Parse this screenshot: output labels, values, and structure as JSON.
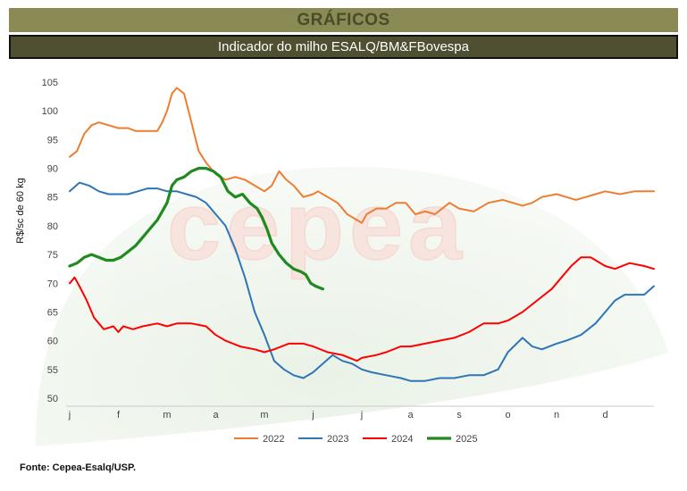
{
  "header": {
    "title": "GRÁFICOS",
    "subtitle": "Indicador do milho ESALQ/BM&FBovespa"
  },
  "watermark": {
    "text": "cepea"
  },
  "source": "Fonte: Cepea-Esalq/USP.",
  "chart_data": {
    "type": "line",
    "ylabel": "R$/sc de 60 kg",
    "xlabel": "",
    "ylim": [
      50,
      105
    ],
    "yticks": [
      50,
      55,
      60,
      65,
      70,
      75,
      80,
      85,
      90,
      95,
      100,
      105
    ],
    "xlim": [
      0,
      12
    ],
    "month_ticks": [
      {
        "label": "j",
        "x": 0
      },
      {
        "label": "f",
        "x": 1
      },
      {
        "label": "m",
        "x": 2
      },
      {
        "label": "a",
        "x": 3
      },
      {
        "label": "m",
        "x": 4
      },
      {
        "label": "j",
        "x": 5
      },
      {
        "label": "j",
        "x": 6
      },
      {
        "label": "a",
        "x": 7
      },
      {
        "label": "s",
        "x": 8
      },
      {
        "label": "o",
        "x": 9
      },
      {
        "label": "n",
        "x": 10
      },
      {
        "label": "d",
        "x": 11
      }
    ],
    "grid": false,
    "legend": "bottom",
    "series": [
      {
        "name": "2022",
        "color": "#ed7d31",
        "width": 2,
        "points": [
          [
            0,
            92
          ],
          [
            0.15,
            93
          ],
          [
            0.3,
            96
          ],
          [
            0.45,
            97.5
          ],
          [
            0.6,
            98
          ],
          [
            0.8,
            97.5
          ],
          [
            1.0,
            97
          ],
          [
            1.2,
            97
          ],
          [
            1.35,
            96.5
          ],
          [
            1.6,
            96.5
          ],
          [
            1.8,
            96.5
          ],
          [
            1.9,
            98
          ],
          [
            2.0,
            100
          ],
          [
            2.1,
            103
          ],
          [
            2.2,
            104
          ],
          [
            2.35,
            103
          ],
          [
            2.5,
            98
          ],
          [
            2.65,
            93
          ],
          [
            2.8,
            91
          ],
          [
            3.0,
            89
          ],
          [
            3.2,
            88
          ],
          [
            3.4,
            88.5
          ],
          [
            3.6,
            88
          ],
          [
            3.8,
            87
          ],
          [
            4.0,
            86
          ],
          [
            4.15,
            87
          ],
          [
            4.3,
            89.5
          ],
          [
            4.45,
            88
          ],
          [
            4.6,
            87
          ],
          [
            4.8,
            85
          ],
          [
            5.0,
            85.5
          ],
          [
            5.1,
            86
          ],
          [
            5.3,
            85
          ],
          [
            5.5,
            84
          ],
          [
            5.7,
            82
          ],
          [
            5.9,
            81
          ],
          [
            6.0,
            80.5
          ],
          [
            6.1,
            82
          ],
          [
            6.3,
            83
          ],
          [
            6.5,
            83
          ],
          [
            6.7,
            84
          ],
          [
            6.9,
            84
          ],
          [
            7.1,
            82
          ],
          [
            7.3,
            82.5
          ],
          [
            7.5,
            82
          ],
          [
            7.8,
            84
          ],
          [
            8.0,
            83
          ],
          [
            8.3,
            82.5
          ],
          [
            8.6,
            84
          ],
          [
            8.9,
            84.5
          ],
          [
            9.1,
            84
          ],
          [
            9.3,
            83.5
          ],
          [
            9.5,
            84
          ],
          [
            9.7,
            85
          ],
          [
            10.0,
            85.5
          ],
          [
            10.2,
            85
          ],
          [
            10.4,
            84.5
          ],
          [
            10.6,
            85
          ],
          [
            10.8,
            85.5
          ],
          [
            11.0,
            86
          ],
          [
            11.3,
            85.5
          ],
          [
            11.6,
            86
          ],
          [
            11.8,
            86
          ],
          [
            12.0,
            86
          ]
        ]
      },
      {
        "name": "2023",
        "color": "#2e75b6",
        "width": 2,
        "points": [
          [
            0,
            86
          ],
          [
            0.2,
            87.5
          ],
          [
            0.4,
            87
          ],
          [
            0.6,
            86
          ],
          [
            0.8,
            85.5
          ],
          [
            1.0,
            85.5
          ],
          [
            1.2,
            85.5
          ],
          [
            1.4,
            86
          ],
          [
            1.6,
            86.5
          ],
          [
            1.8,
            86.5
          ],
          [
            2.0,
            86
          ],
          [
            2.2,
            86
          ],
          [
            2.4,
            85.5
          ],
          [
            2.6,
            85
          ],
          [
            2.8,
            84
          ],
          [
            3.0,
            82
          ],
          [
            3.2,
            80
          ],
          [
            3.4,
            76
          ],
          [
            3.6,
            71
          ],
          [
            3.8,
            65
          ],
          [
            4.0,
            61
          ],
          [
            4.2,
            56.5
          ],
          [
            4.4,
            55
          ],
          [
            4.6,
            54
          ],
          [
            4.8,
            53.5
          ],
          [
            5.0,
            54.5
          ],
          [
            5.2,
            56
          ],
          [
            5.4,
            57.5
          ],
          [
            5.6,
            56.5
          ],
          [
            5.8,
            56
          ],
          [
            6.0,
            55
          ],
          [
            6.2,
            54.5
          ],
          [
            6.5,
            54
          ],
          [
            6.8,
            53.5
          ],
          [
            7.0,
            53
          ],
          [
            7.3,
            53
          ],
          [
            7.6,
            53.5
          ],
          [
            7.9,
            53.5
          ],
          [
            8.2,
            54
          ],
          [
            8.5,
            54
          ],
          [
            8.8,
            55
          ],
          [
            9.0,
            58
          ],
          [
            9.3,
            60.5
          ],
          [
            9.5,
            59
          ],
          [
            9.7,
            58.5
          ],
          [
            10.0,
            59.5
          ],
          [
            10.2,
            60
          ],
          [
            10.5,
            61
          ],
          [
            10.8,
            63
          ],
          [
            11.0,
            65
          ],
          [
            11.2,
            67
          ],
          [
            11.4,
            68
          ],
          [
            11.6,
            68
          ],
          [
            11.8,
            68
          ],
          [
            12.0,
            69.5
          ]
        ]
      },
      {
        "name": "2024",
        "color": "#ff0000",
        "width": 2,
        "points": [
          [
            0,
            70
          ],
          [
            0.1,
            71
          ],
          [
            0.2,
            69.5
          ],
          [
            0.35,
            67
          ],
          [
            0.5,
            64
          ],
          [
            0.7,
            62
          ],
          [
            0.9,
            62.5
          ],
          [
            1.0,
            61.5
          ],
          [
            1.1,
            62.5
          ],
          [
            1.3,
            62
          ],
          [
            1.5,
            62.5
          ],
          [
            1.8,
            63
          ],
          [
            2.0,
            62.5
          ],
          [
            2.2,
            63
          ],
          [
            2.5,
            63
          ],
          [
            2.8,
            62.5
          ],
          [
            3.0,
            61
          ],
          [
            3.2,
            60
          ],
          [
            3.5,
            59
          ],
          [
            3.8,
            58.5
          ],
          [
            4.0,
            58
          ],
          [
            4.2,
            58.5
          ],
          [
            4.5,
            59.5
          ],
          [
            4.8,
            59.5
          ],
          [
            5.0,
            59
          ],
          [
            5.3,
            58
          ],
          [
            5.6,
            57.5
          ],
          [
            5.9,
            56.5
          ],
          [
            6.0,
            57
          ],
          [
            6.3,
            57.5
          ],
          [
            6.5,
            58
          ],
          [
            6.8,
            59
          ],
          [
            7.0,
            59
          ],
          [
            7.3,
            59.5
          ],
          [
            7.6,
            60
          ],
          [
            7.9,
            60.5
          ],
          [
            8.2,
            61.5
          ],
          [
            8.5,
            63
          ],
          [
            8.8,
            63
          ],
          [
            9.0,
            63.5
          ],
          [
            9.3,
            65
          ],
          [
            9.6,
            67
          ],
          [
            9.9,
            69
          ],
          [
            10.1,
            71
          ],
          [
            10.3,
            73
          ],
          [
            10.5,
            74.5
          ],
          [
            10.7,
            74.5
          ],
          [
            10.8,
            74
          ],
          [
            11.0,
            73
          ],
          [
            11.2,
            72.5
          ],
          [
            11.5,
            73.5
          ],
          [
            11.8,
            73
          ],
          [
            12.0,
            72.5
          ]
        ]
      },
      {
        "name": "2025",
        "color": "#1f8a1f",
        "width": 3.2,
        "points": [
          [
            0,
            73
          ],
          [
            0.15,
            73.5
          ],
          [
            0.3,
            74.5
          ],
          [
            0.45,
            75
          ],
          [
            0.6,
            74.5
          ],
          [
            0.75,
            74
          ],
          [
            0.9,
            74
          ],
          [
            1.05,
            74.5
          ],
          [
            1.2,
            75.5
          ],
          [
            1.35,
            76.5
          ],
          [
            1.5,
            78
          ],
          [
            1.65,
            79.5
          ],
          [
            1.8,
            81
          ],
          [
            1.9,
            82.5
          ],
          [
            2.0,
            84
          ],
          [
            2.1,
            87
          ],
          [
            2.2,
            88
          ],
          [
            2.35,
            88.5
          ],
          [
            2.5,
            89.5
          ],
          [
            2.65,
            90
          ],
          [
            2.8,
            90
          ],
          [
            2.95,
            89.5
          ],
          [
            3.1,
            88.5
          ],
          [
            3.25,
            86
          ],
          [
            3.4,
            85
          ],
          [
            3.55,
            85.5
          ],
          [
            3.7,
            84
          ],
          [
            3.85,
            83
          ],
          [
            3.95,
            81.5
          ],
          [
            4.05,
            79.5
          ],
          [
            4.15,
            77
          ],
          [
            4.3,
            75
          ],
          [
            4.45,
            73.5
          ],
          [
            4.6,
            72.5
          ],
          [
            4.75,
            72
          ],
          [
            4.85,
            71.5
          ],
          [
            4.95,
            70
          ],
          [
            5.05,
            69.5
          ],
          [
            5.2,
            69
          ]
        ]
      }
    ]
  }
}
